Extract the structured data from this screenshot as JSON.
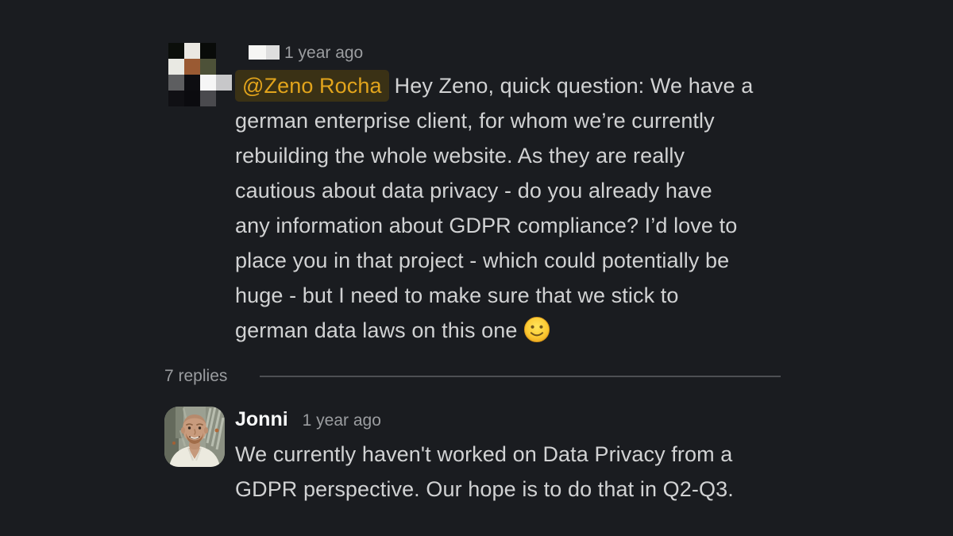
{
  "theme": {
    "background": "#1a1c20",
    "text": "#d1d2d3",
    "secondary": "#9b9da0",
    "divider": "#4d4f53",
    "mention_text": "#e2a41c",
    "mention_bg": "#3a3115",
    "author": "#f7f8f8"
  },
  "root_message": {
    "timestamp": "1 year ago",
    "mention": "@Zeno Rocha",
    "lines": [
      "Hey Zeno, quick question: We have a",
      "german enterprise client, for whom we’re currently",
      "rebuilding the whole website. As they are really",
      "cautious about data privacy - do you already have",
      "any information about GDPR compliance? I’d love to",
      "place you in that project - which could potentially be",
      "huge - but I need to make sure that we stick to",
      "german data laws on this one"
    ],
    "emoji_name": "slightly-smiling-face"
  },
  "avatar_mosaic": {
    "cells": [
      "#0b0e0a",
      "#eae8e2",
      "#090b09",
      null,
      "#e9e9e3",
      "#9a5a33",
      "#4d5138",
      null,
      "#5d5e60",
      "#0d0d11",
      "#f6f6f6",
      "#c7c7c9",
      "#101014",
      "#0b0b0f",
      "#4a4a4e",
      null
    ]
  },
  "redacted_name": {
    "segments": [
      "#f6f6f4",
      "#dedede"
    ]
  },
  "thread": {
    "replies_label": "7 replies"
  },
  "reply": {
    "author": "Jonni",
    "timestamp": "1 year ago",
    "lines": [
      "We currently haven't worked on Data Privacy from a",
      "GDPR perspective. Our hope is to do that in Q2-Q3."
    ]
  }
}
